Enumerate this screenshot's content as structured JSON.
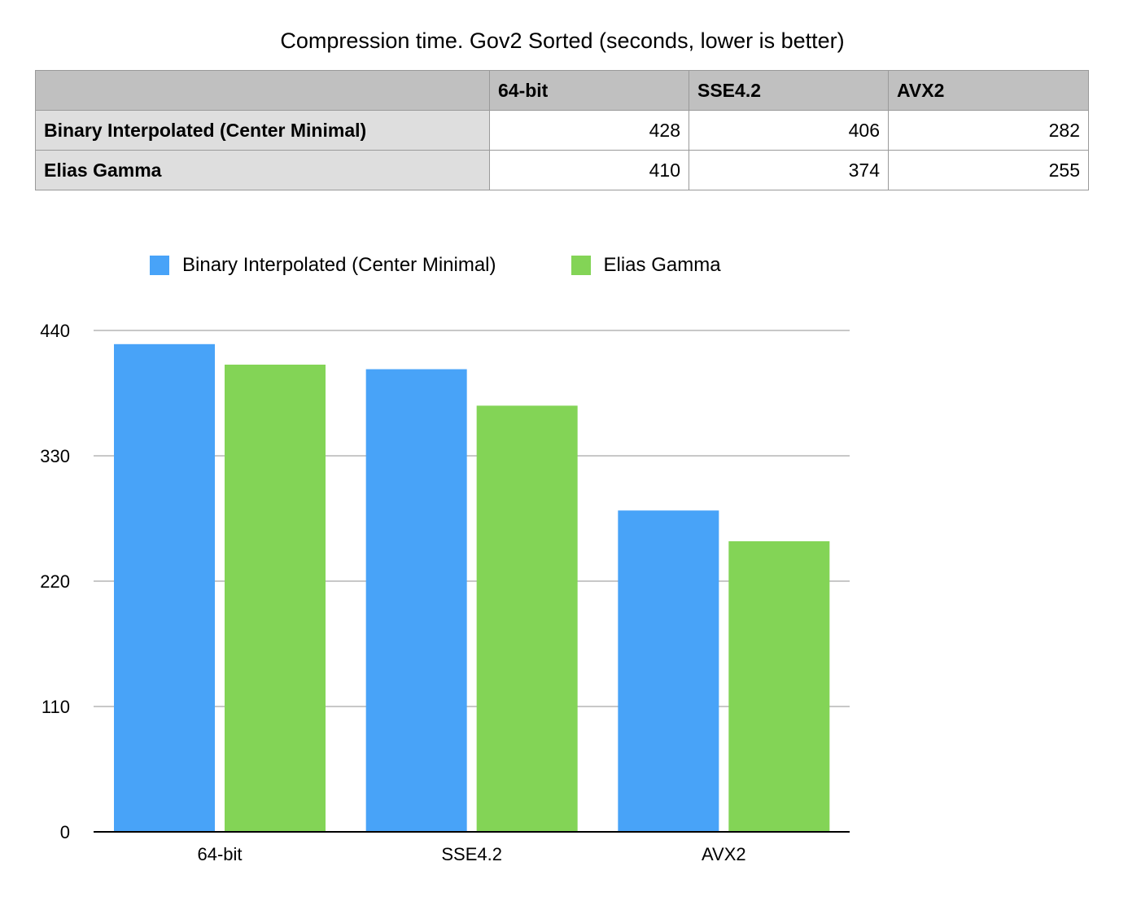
{
  "chart_data": {
    "type": "bar",
    "title": "Compression time. Gov2 Sorted (seconds, lower is better)",
    "categories": [
      "64-bit",
      "SSE4.2",
      "AVX2"
    ],
    "series": [
      {
        "name": "Binary Interpolated (Center Minimal)",
        "values": [
          428,
          406,
          282
        ],
        "color": "#48a3f8"
      },
      {
        "name": "Elias Gamma",
        "values": [
          410,
          374,
          255
        ],
        "color": "#83d456"
      }
    ],
    "ylim": [
      0,
      440
    ],
    "yticks": [
      0,
      110,
      220,
      330,
      440
    ],
    "grid": true,
    "legend": "top"
  },
  "table": {
    "header": [
      "",
      "64-bit",
      "SSE4.2",
      "AVX2"
    ],
    "rows": [
      {
        "label": "Binary Interpolated (Center Minimal)",
        "cells": [
          "428",
          "406",
          "282"
        ]
      },
      {
        "label": "Elias Gamma",
        "cells": [
          "410",
          "374",
          "255"
        ]
      }
    ]
  }
}
